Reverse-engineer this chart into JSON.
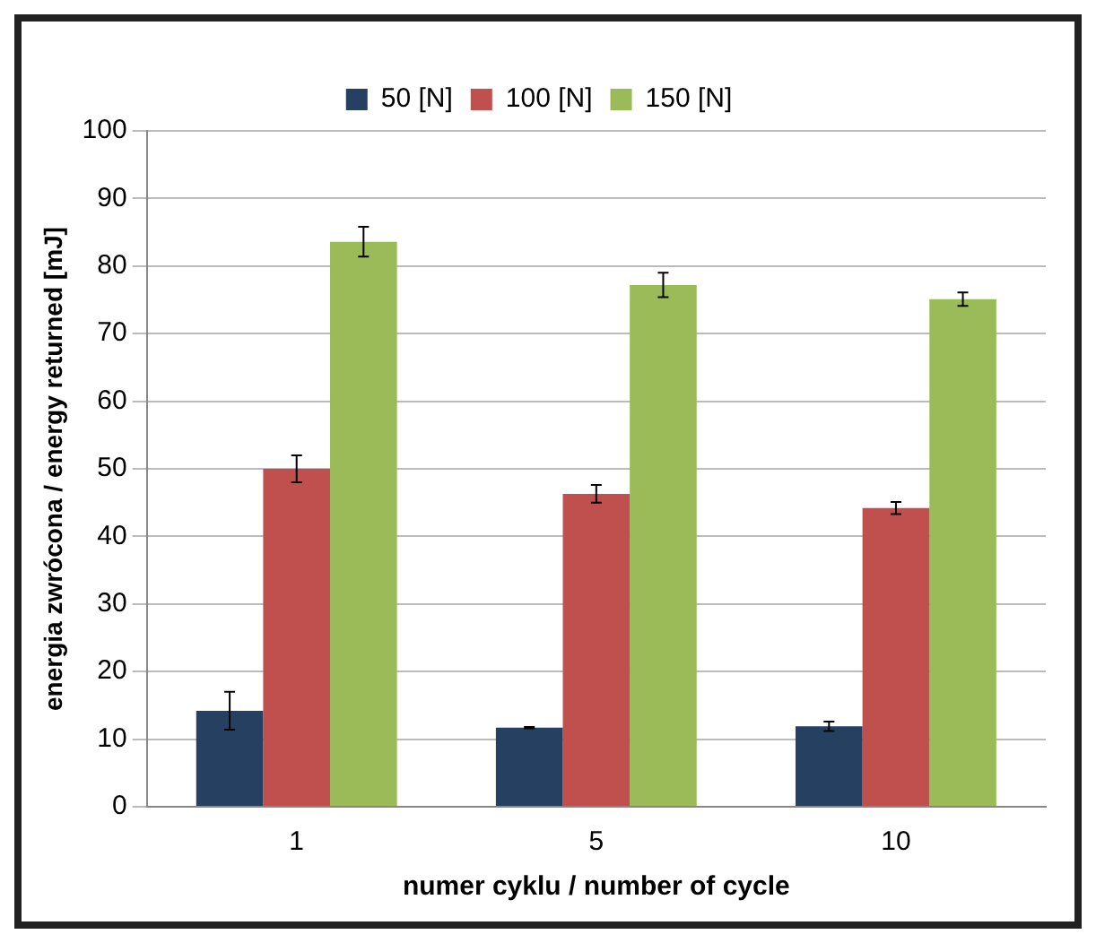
{
  "chart_data": {
    "type": "bar",
    "xlabel": "numer cyklu / number of cycle",
    "ylabel": "energia zwrócona / energy returned [mJ]",
    "categories": [
      "1",
      "5",
      "10"
    ],
    "series": [
      {
        "name": "50 [N]",
        "color": "#264061",
        "values": [
          14.2,
          11.7,
          11.9
        ],
        "errors": [
          2.8,
          0.1,
          0.7
        ]
      },
      {
        "name": "100 [N]",
        "color": "#c0504d",
        "values": [
          50.0,
          46.3,
          44.2
        ],
        "errors": [
          2.0,
          1.3,
          0.9
        ]
      },
      {
        "name": "150 [N]",
        "color": "#9bbb59",
        "values": [
          83.6,
          77.2,
          75.1
        ],
        "errors": [
          2.2,
          1.8,
          1.0
        ]
      }
    ],
    "ylim": [
      0,
      100
    ],
    "yticks": [
      0,
      10,
      20,
      30,
      40,
      50,
      60,
      70,
      80,
      90,
      100
    ],
    "grid": "y",
    "legend": "top"
  }
}
